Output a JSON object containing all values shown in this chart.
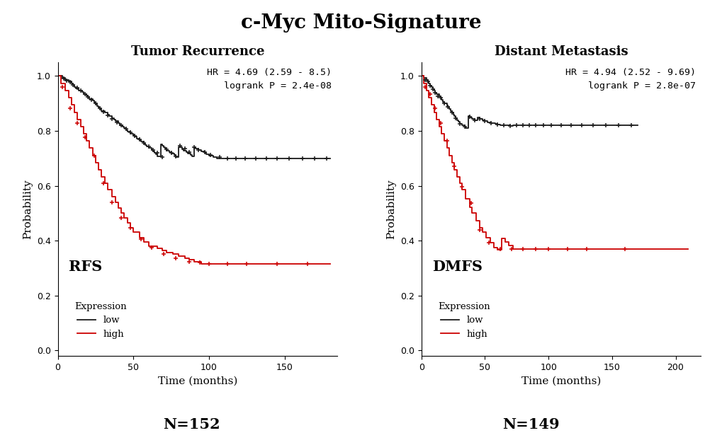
{
  "title": "c-Myc Mito-Signature",
  "title_fontsize": 20,
  "title_fontweight": "bold",
  "panel1_title": "Tumor Recurrence",
  "panel2_title": "Distant Metastasis",
  "panel1_label": "RFS",
  "panel2_label": "DMFS",
  "panel1_n": "N=152",
  "panel2_n": "N=149",
  "panel1_hr_text": "HR = 4.69 (2.59 - 8.5)\nlogrank P = 2.4e-08",
  "panel2_hr_text": "HR = 4.94 (2.52 - 9.69)\nlogrank P = 2.8e-07",
  "ylabel": "Probability",
  "xlabel": "Time (months)",
  "low_color": "#1a1a1a",
  "high_color": "#cc0000",
  "legend_title": "Expression",
  "legend_low": "low",
  "legend_high": "high",
  "panel1_xlim": [
    0,
    185
  ],
  "panel1_xticks": [
    0,
    50,
    100,
    150
  ],
  "panel2_xlim": [
    0,
    220
  ],
  "panel2_xticks": [
    0,
    50,
    100,
    150,
    200
  ],
  "ylim": [
    -0.02,
    1.05
  ],
  "yticks": [
    0.0,
    0.2,
    0.4,
    0.6,
    0.8,
    1.0
  ],
  "rfs_low_times": [
    0,
    3,
    5,
    7,
    9,
    10,
    11,
    12,
    14,
    16,
    17,
    19,
    20,
    21,
    23,
    24,
    25,
    26,
    27,
    28,
    29,
    31,
    33,
    34,
    36,
    37,
    38,
    40,
    41,
    43,
    44,
    45,
    46,
    48,
    50,
    51,
    52,
    54,
    55,
    57,
    58,
    59,
    60,
    62,
    63,
    64,
    65,
    66,
    68,
    69,
    70,
    71,
    72,
    74,
    75,
    77,
    78,
    80,
    82,
    83,
    85,
    86,
    88,
    89,
    90,
    91,
    93,
    95,
    97,
    98,
    100,
    103,
    105,
    108,
    110,
    113,
    115,
    120,
    125,
    130,
    135,
    140,
    145,
    150,
    155,
    160,
    165,
    170,
    175,
    180
  ],
  "rfs_low_surv": [
    1.0,
    0.993,
    0.987,
    0.98,
    0.974,
    0.967,
    0.961,
    0.955,
    0.948,
    0.942,
    0.935,
    0.929,
    0.923,
    0.916,
    0.91,
    0.904,
    0.897,
    0.891,
    0.885,
    0.879,
    0.872,
    0.866,
    0.86,
    0.853,
    0.847,
    0.841,
    0.835,
    0.829,
    0.822,
    0.816,
    0.81,
    0.804,
    0.797,
    0.791,
    0.785,
    0.779,
    0.773,
    0.767,
    0.761,
    0.755,
    0.749,
    0.743,
    0.737,
    0.731,
    0.725,
    0.72,
    0.714,
    0.708,
    0.752,
    0.746,
    0.74,
    0.735,
    0.729,
    0.723,
    0.717,
    0.712,
    0.706,
    0.74,
    0.734,
    0.729,
    0.723,
    0.718,
    0.712,
    0.707,
    0.741,
    0.736,
    0.73,
    0.725,
    0.72,
    0.715,
    0.71,
    0.705,
    0.7,
    0.7,
    0.7,
    0.7,
    0.7,
    0.7,
    0.7,
    0.7,
    0.7,
    0.7,
    0.7,
    0.7,
    0.7,
    0.7,
    0.7,
    0.7,
    0.7,
    0.7
  ],
  "rfs_low_censors_t": [
    4,
    6,
    8,
    10,
    13,
    15,
    18,
    20,
    22,
    25,
    28,
    30,
    33,
    36,
    39,
    42,
    45,
    48,
    51,
    54,
    57,
    60,
    63,
    66,
    69,
    72,
    75,
    78,
    81,
    84,
    87,
    90,
    93,
    97,
    101,
    107,
    112,
    118,
    124,
    131,
    138,
    145,
    153,
    162,
    170,
    178
  ],
  "rfs_low_censors_s": [
    0.99,
    0.983,
    0.977,
    0.967,
    0.958,
    0.948,
    0.935,
    0.923,
    0.913,
    0.9,
    0.882,
    0.87,
    0.857,
    0.844,
    0.832,
    0.82,
    0.807,
    0.794,
    0.782,
    0.769,
    0.757,
    0.744,
    0.731,
    0.719,
    0.706,
    0.732,
    0.72,
    0.708,
    0.746,
    0.735,
    0.724,
    0.741,
    0.73,
    0.722,
    0.713,
    0.706,
    0.7,
    0.7,
    0.7,
    0.7,
    0.7,
    0.7,
    0.7,
    0.7,
    0.7,
    0.7
  ],
  "rfs_high_times": [
    0,
    2,
    5,
    7,
    9,
    11,
    13,
    15,
    17,
    19,
    21,
    23,
    25,
    27,
    29,
    31,
    33,
    36,
    38,
    40,
    42,
    44,
    46,
    48,
    50,
    54,
    57,
    60,
    63,
    66,
    69,
    72,
    76,
    80,
    84,
    87,
    90,
    95,
    100,
    110,
    120,
    130,
    140,
    150,
    160,
    170,
    180
  ],
  "rfs_high_surv": [
    1.0,
    0.974,
    0.948,
    0.921,
    0.895,
    0.868,
    0.842,
    0.816,
    0.789,
    0.763,
    0.737,
    0.711,
    0.684,
    0.658,
    0.632,
    0.609,
    0.586,
    0.561,
    0.539,
    0.519,
    0.5,
    0.482,
    0.464,
    0.447,
    0.432,
    0.412,
    0.395,
    0.38,
    0.379,
    0.372,
    0.365,
    0.358,
    0.351,
    0.344,
    0.337,
    0.33,
    0.323,
    0.316,
    0.316,
    0.316,
    0.316,
    0.316,
    0.316,
    0.316,
    0.316,
    0.316,
    0.316
  ],
  "rfs_high_censors_t": [
    3,
    8,
    13,
    18,
    24,
    30,
    36,
    42,
    48,
    55,
    62,
    70,
    78,
    87,
    94,
    100,
    112,
    125,
    145,
    165
  ],
  "rfs_high_censors_s": [
    0.961,
    0.882,
    0.829,
    0.776,
    0.711,
    0.609,
    0.539,
    0.482,
    0.447,
    0.407,
    0.376,
    0.351,
    0.337,
    0.323,
    0.32,
    0.316,
    0.316,
    0.316,
    0.316,
    0.316
  ],
  "dmfs_low_times": [
    0,
    2,
    4,
    5,
    6,
    7,
    8,
    9,
    10,
    11,
    12,
    14,
    15,
    16,
    17,
    18,
    20,
    21,
    22,
    23,
    24,
    25,
    26,
    27,
    28,
    29,
    30,
    32,
    34,
    35,
    37,
    38,
    40,
    42,
    44,
    46,
    48,
    50,
    52,
    55,
    58,
    60,
    62,
    65,
    68,
    70,
    72,
    75,
    78,
    80,
    83,
    85,
    87,
    89,
    91,
    93,
    95,
    98,
    100,
    105,
    110,
    115,
    120,
    125,
    130,
    140,
    150,
    160,
    170
  ],
  "dmfs_low_surv": [
    1.0,
    0.993,
    0.986,
    0.98,
    0.973,
    0.966,
    0.96,
    0.953,
    0.946,
    0.94,
    0.933,
    0.927,
    0.92,
    0.913,
    0.907,
    0.9,
    0.893,
    0.887,
    0.88,
    0.873,
    0.867,
    0.86,
    0.853,
    0.847,
    0.84,
    0.833,
    0.827,
    0.82,
    0.815,
    0.81,
    0.855,
    0.85,
    0.845,
    0.84,
    0.85,
    0.845,
    0.84,
    0.835,
    0.832,
    0.829,
    0.826,
    0.823,
    0.82,
    0.82,
    0.82,
    0.817,
    0.82,
    0.82,
    0.82,
    0.82,
    0.82,
    0.82,
    0.82,
    0.82,
    0.82,
    0.82,
    0.82,
    0.82,
    0.82,
    0.82,
    0.82,
    0.82,
    0.82,
    0.82,
    0.82,
    0.82,
    0.82,
    0.82,
    0.82
  ],
  "dmfs_low_censors_t": [
    3,
    5,
    7,
    9,
    11,
    13,
    15,
    18,
    21,
    24,
    27,
    30,
    34,
    38,
    42,
    46,
    50,
    55,
    60,
    65,
    70,
    75,
    80,
    85,
    90,
    96,
    102,
    110,
    118,
    126,
    135,
    145,
    155,
    165
  ],
  "dmfs_low_censors_s": [
    0.986,
    0.98,
    0.966,
    0.953,
    0.94,
    0.927,
    0.92,
    0.9,
    0.887,
    0.867,
    0.847,
    0.827,
    0.815,
    0.851,
    0.84,
    0.845,
    0.835,
    0.829,
    0.823,
    0.82,
    0.818,
    0.82,
    0.82,
    0.82,
    0.82,
    0.82,
    0.82,
    0.82,
    0.82,
    0.82,
    0.82,
    0.82,
    0.82,
    0.82
  ],
  "dmfs_high_times": [
    0,
    2,
    4,
    6,
    8,
    10,
    12,
    14,
    16,
    18,
    20,
    22,
    24,
    26,
    28,
    30,
    32,
    35,
    38,
    40,
    43,
    46,
    48,
    51,
    54,
    57,
    60,
    63,
    66,
    69,
    72,
    75,
    78,
    81,
    84,
    87,
    90,
    95,
    100,
    110,
    120,
    130,
    140,
    150,
    160,
    170,
    210
  ],
  "dmfs_high_surv": [
    1.0,
    0.974,
    0.947,
    0.921,
    0.895,
    0.868,
    0.842,
    0.816,
    0.789,
    0.763,
    0.737,
    0.711,
    0.684,
    0.658,
    0.632,
    0.609,
    0.586,
    0.553,
    0.521,
    0.5,
    0.472,
    0.447,
    0.431,
    0.411,
    0.392,
    0.374,
    0.368,
    0.408,
    0.395,
    0.382,
    0.37,
    0.37,
    0.37,
    0.37,
    0.37,
    0.37,
    0.37,
    0.37,
    0.37,
    0.37,
    0.37,
    0.37,
    0.37,
    0.37,
    0.37,
    0.37,
    0.37
  ],
  "dmfs_high_censors_t": [
    3,
    7,
    11,
    15,
    20,
    26,
    32,
    39,
    46,
    53,
    62,
    71,
    80,
    90,
    100,
    115,
    130,
    160
  ],
  "dmfs_high_censors_s": [
    0.961,
    0.934,
    0.882,
    0.829,
    0.763,
    0.671,
    0.597,
    0.536,
    0.439,
    0.392,
    0.37,
    0.37,
    0.37,
    0.37,
    0.37,
    0.37,
    0.37,
    0.37
  ]
}
